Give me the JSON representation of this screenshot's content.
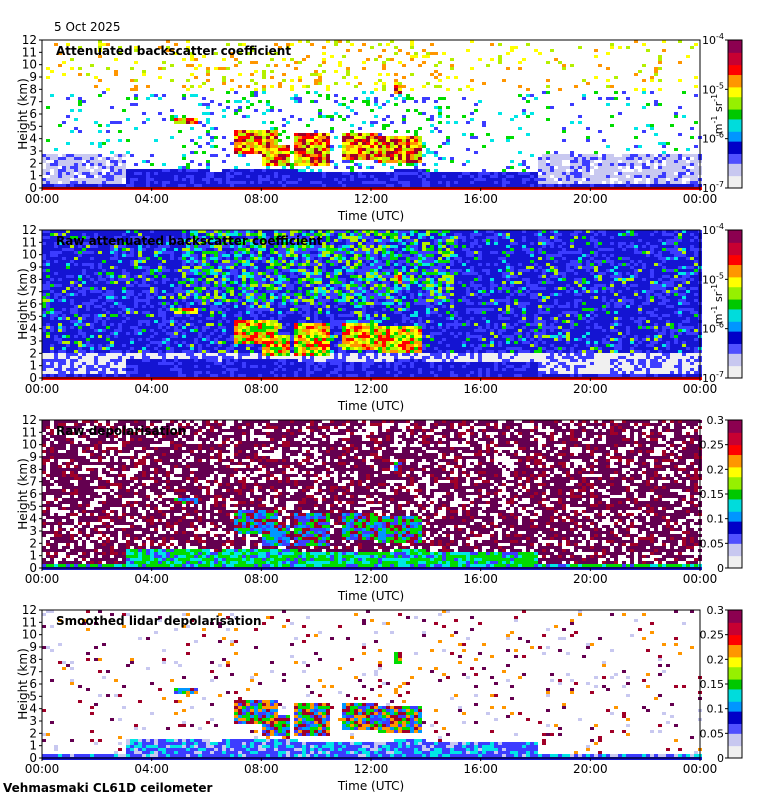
{
  "date": "5 Oct 2025",
  "site_label": "Vehmasmaki CL61D ceilometer",
  "colors": {
    "grey_clear": "#d9d9d9",
    "low_blue": "#1f3cff",
    "green": "#2fbf2f",
    "yellow": "#f2e600",
    "orange": "#ff8a00",
    "red": "#ff1a1a",
    "dark_red": "#8b0025",
    "purple": "#7a0060"
  },
  "colormap": [
    "#f0f0f0",
    "#c8c8f0",
    "#3c3cff",
    "#1414d2",
    "#0096ff",
    "#00e6e6",
    "#00dc00",
    "#b4f000",
    "#ffff00",
    "#ff9600",
    "#ff0000",
    "#a00028",
    "#640050"
  ],
  "chart_data": [
    {
      "type": "heatmap",
      "title": "Attenuated backscatter coefficient",
      "xlabel": "Time (UTC)",
      "ylabel": "Height (km)",
      "x_ticks": [
        "00:00",
        "04:00",
        "08:00",
        "12:00",
        "16:00",
        "20:00",
        "00:00"
      ],
      "y_ticks": [
        "0",
        "1",
        "2",
        "3",
        "4",
        "5",
        "6",
        "7",
        "8",
        "9",
        "10",
        "11",
        "12"
      ],
      "ylim": [
        0,
        12
      ],
      "colorbar": {
        "scale": "log",
        "ticks": [
          "10-7",
          "10-6",
          "10-5",
          "10-4"
        ],
        "tick_base": "10",
        "tick_exps": [
          "-7",
          "-6",
          "-5",
          "-4"
        ],
        "units_main": "m",
        "units_exp1": "-1",
        "units_mid": " sr",
        "units_exp2": "-1",
        "range": [
          1e-07,
          0.0001
        ]
      },
      "style": "smoothed-backscatter"
    },
    {
      "type": "heatmap",
      "title": "Raw attenuated backscatter coefficient",
      "xlabel": "Time (UTC)",
      "ylabel": "Height (km)",
      "x_ticks": [
        "00:00",
        "04:00",
        "08:00",
        "12:00",
        "16:00",
        "20:00",
        "00:00"
      ],
      "y_ticks": [
        "0",
        "1",
        "2",
        "3",
        "4",
        "5",
        "6",
        "7",
        "8",
        "9",
        "10",
        "11",
        "12"
      ],
      "ylim": [
        0,
        12
      ],
      "colorbar": {
        "scale": "log",
        "ticks": [
          "10-7",
          "10-6",
          "10-5",
          "10-4"
        ],
        "tick_base": "10",
        "tick_exps": [
          "-7",
          "-6",
          "-5",
          "-4"
        ],
        "units_main": "m",
        "units_exp1": "-1",
        "units_mid": " sr",
        "units_exp2": "-1",
        "range": [
          1e-07,
          0.0001
        ]
      },
      "style": "raw-backscatter"
    },
    {
      "type": "heatmap",
      "title": "Raw depolarisation",
      "xlabel": "Time (UTC)",
      "ylabel": "Height (km)",
      "x_ticks": [
        "00:00",
        "04:00",
        "08:00",
        "12:00",
        "16:00",
        "20:00",
        "00:00"
      ],
      "y_ticks": [
        "0",
        "1",
        "2",
        "3",
        "4",
        "5",
        "6",
        "7",
        "8",
        "9",
        "10",
        "11",
        "12"
      ],
      "ylim": [
        0,
        12
      ],
      "colorbar": {
        "scale": "linear",
        "ticks": [
          "0",
          "0.05",
          "0.1",
          "0.15",
          "0.2",
          "0.25",
          "0.3"
        ],
        "range": [
          0,
          0.3
        ]
      },
      "style": "raw-depol"
    },
    {
      "type": "heatmap",
      "title": "Smoothed lidar depolarisation",
      "xlabel": "Time (UTC)",
      "ylabel": "Height (km)",
      "x_ticks": [
        "00:00",
        "04:00",
        "08:00",
        "12:00",
        "16:00",
        "20:00",
        "00:00"
      ],
      "y_ticks": [
        "0",
        "1",
        "2",
        "3",
        "4",
        "5",
        "6",
        "7",
        "8",
        "9",
        "10",
        "11",
        "12"
      ],
      "ylim": [
        0,
        12
      ],
      "colorbar": {
        "scale": "linear",
        "ticks": [
          "0",
          "0.05",
          "0.1",
          "0.15",
          "0.2",
          "0.25",
          "0.3"
        ],
        "range": [
          0,
          0.3
        ]
      },
      "style": "smoothed-depol"
    }
  ]
}
